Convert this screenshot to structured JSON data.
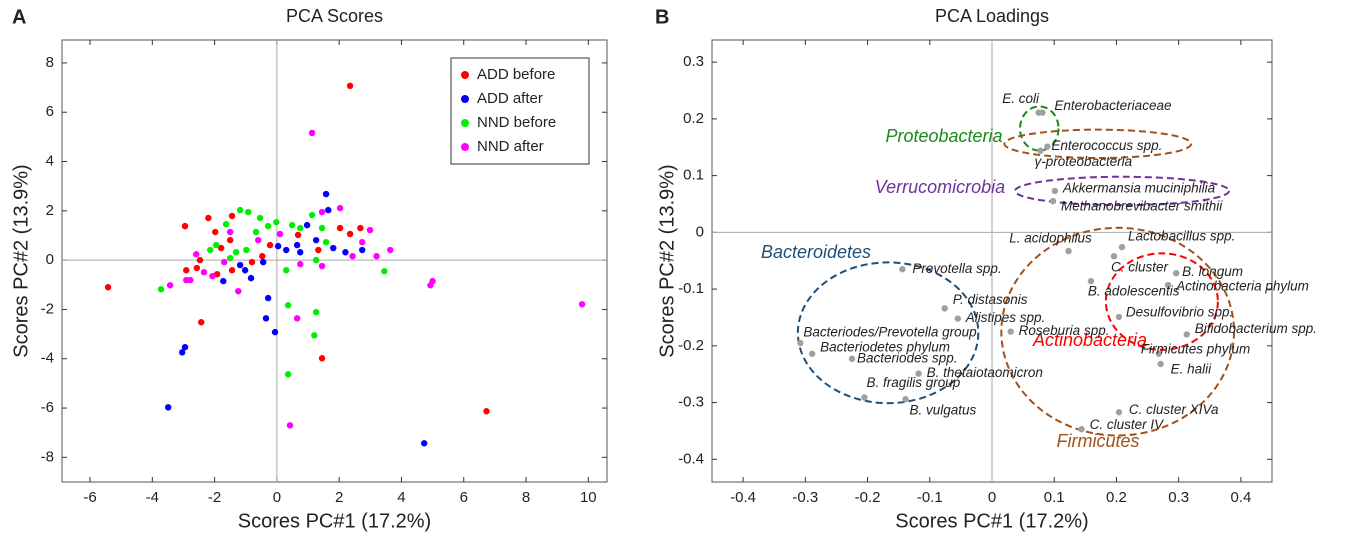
{
  "chart_data": [
    {
      "type": "scatter",
      "panel_label": "A",
      "title": "PCA Scores",
      "x_label": "Scores PC#1 (17.2%)",
      "y_label": "Scores PC#2 (13.9%)",
      "xlim": [
        -6.9,
        10.6
      ],
      "ylim": [
        -9.0,
        8.93
      ],
      "xticks": [
        -6,
        -4,
        -2,
        0,
        2,
        4,
        6,
        8,
        10
      ],
      "yticks": [
        -8,
        -6,
        -4,
        -2,
        0,
        2,
        4,
        6,
        8
      ],
      "legend": "upper right",
      "series": [
        {
          "name": "ADD before",
          "color": "#ff0000",
          "x": [
            -5.42,
            2.35,
            -2.95,
            -2.2,
            -2.47,
            -1.98,
            -1.79,
            -1.5,
            -2.43,
            1.45,
            6.73,
            2.03,
            2.68,
            2.35,
            0.68,
            1.33,
            -1.44,
            -0.8,
            -2.91,
            -1.92,
            -2.57,
            -1.44,
            -0.22,
            -0.47
          ],
          "values": [
            -1.1,
            7.07,
            1.38,
            1.71,
            0,
            1.14,
            0.49,
            0.81,
            -2.52,
            -3.98,
            -6.13,
            1.3,
            1.3,
            1.06,
            1.02,
            0.41,
            -0.41,
            -0.08,
            -0.41,
            -0.57,
            -0.32,
            1.79,
            0.61,
            0.16
          ]
        },
        {
          "name": "ADD after",
          "color": "#0000ff",
          "x": [
            -3.49,
            -3.04,
            -2.95,
            4.73,
            1.58,
            1.65,
            0.97,
            0.65,
            -0.06,
            -0.28,
            -0.35,
            1.81,
            2.2,
            2.74,
            0.75,
            0.04,
            -0.44,
            -0.83,
            -1.18,
            -1.02,
            -1.72,
            0.3,
            1.26
          ],
          "values": [
            -5.97,
            -3.74,
            -3.53,
            -7.43,
            2.68,
            2.03,
            1.42,
            0.61,
            -2.92,
            -1.54,
            -2.36,
            0.49,
            0.32,
            0.41,
            0.32,
            0.57,
            -0.08,
            -0.73,
            -0.2,
            -0.41,
            -0.85,
            0.41,
            0.81
          ]
        },
        {
          "name": "NND before",
          "color": "#00ee00",
          "x": [
            -3.72,
            -1.18,
            -0.92,
            -0.54,
            0.3,
            1.13,
            1.26,
            1.2,
            0.36,
            0.36,
            3.45,
            -0.02,
            0.49,
            -1.63,
            -2.14,
            -1.95,
            -1.31,
            -0.67,
            -0.28,
            0.75,
            1.45,
            1.58,
            1.26,
            -0.98,
            -1.5
          ],
          "values": [
            -1.18,
            2.03,
            1.95,
            1.71,
            -0.41,
            1.83,
            -2.11,
            -3.05,
            -4.63,
            -1.83,
            -0.45,
            1.54,
            1.42,
            1.46,
            0.41,
            0.61,
            0.32,
            1.14,
            1.38,
            1.3,
            1.3,
            0.73,
            0,
            0.41,
            0.08
          ]
        },
        {
          "name": "NND after",
          "color": "#ff00ff",
          "x": [
            9.8,
            5.0,
            4.93,
            1.13,
            0.65,
            0.42,
            -3.43,
            -2.91,
            -2.78,
            -1.24,
            -2.34,
            -2.59,
            2.03,
            2.99,
            2.74,
            3.64,
            3.2,
            1.45,
            0.75,
            0.1,
            -0.6,
            -1.5,
            -2.07,
            -1.69,
            1.45,
            2.43
          ],
          "values": [
            -1.79,
            -0.85,
            -1.02,
            5.16,
            -2.36,
            -6.7,
            -1.02,
            -0.81,
            -0.81,
            -1.26,
            -0.49,
            0.24,
            2.11,
            1.22,
            0.73,
            0.41,
            0.16,
            1.95,
            -0.16,
            1.06,
            0.81,
            1.14,
            -0.65,
            -0.08,
            -0.24,
            0.16
          ]
        }
      ]
    },
    {
      "type": "labeled-scatter",
      "panel_label": "B",
      "title": "PCA Loadings",
      "x_label": "Scores PC#1 (17.2%)",
      "y_label": "Scores PC#2 (13.9%)",
      "xlim": [
        -0.45,
        0.45
      ],
      "ylim": [
        -0.44,
        0.339
      ],
      "xticks": [
        -0.4,
        -0.3,
        -0.2,
        -0.1,
        0,
        0.1,
        0.2,
        0.3,
        0.4
      ],
      "yticks": [
        -0.4,
        -0.3,
        -0.2,
        -0.1,
        0,
        0.1,
        0.2,
        0.3
      ],
      "color": "#a0a0a0",
      "point_labels": [
        "E. coli",
        "Enterobacteriaceae",
        "Enterococcus spp.",
        "γ-proteobacteria",
        "Akkermansia muciniphilia",
        "Methanobrevibacter smithii",
        "L. acidophilus",
        "Lactobacillus spp.",
        "C. cluster",
        "B. longum",
        "Actinobacteria phylum",
        "B. adolescentis",
        "Desulfovibrio spp.",
        "Bifidobacterium spp.",
        "Firmicutes phylum",
        "E. halii",
        "C. cluster XIVa",
        "C. cluster IV",
        "Prevotella spp.",
        "P. distasonis",
        "Alistipes spp.",
        "Roseburia spp.",
        "Bacteriodes/Prevotella group",
        "Bacteriodetes phylum",
        "Bacteriodes spp.",
        "B. thetaiotaomicron",
        "B. fragilis group",
        "B. vulgatus"
      ],
      "x": [
        0.075,
        0.081,
        0.089,
        0.078,
        0.101,
        0.098,
        0.123,
        0.209,
        0.196,
        0.296,
        0.283,
        0.159,
        0.204,
        0.313,
        0.268,
        0.271,
        0.204,
        0.144,
        -0.144,
        -0.076,
        -0.055,
        0.03,
        -0.308,
        -0.289,
        -0.225,
        -0.118,
        -0.205,
        -0.139
      ],
      "values": [
        0.211,
        0.211,
        0.151,
        0.144,
        0.073,
        0.055,
        -0.033,
        -0.026,
        -0.042,
        -0.072,
        -0.093,
        -0.086,
        -0.149,
        -0.18,
        -0.214,
        -0.232,
        -0.317,
        -0.347,
        -0.065,
        -0.134,
        -0.152,
        -0.175,
        -0.195,
        -0.214,
        -0.223,
        -0.249,
        -0.291,
        -0.294
      ],
      "groups": [
        {
          "name": "Proteobacteria",
          "color": "#1a8a1a",
          "center": [
            0.076,
            0.183
          ],
          "radii": [
            0.031,
            0.039
          ]
        },
        {
          "color": "#a0521a",
          "center": [
            0.17,
            0.156
          ],
          "radii": [
            0.15,
            0.025
          ]
        },
        {
          "name": "Verrucomicrobia",
          "color": "#7030a0",
          "center": [
            0.209,
            0.073
          ],
          "radii": [
            0.172,
            0.025
          ]
        },
        {
          "name": "Bacteroidetes",
          "color": "#1f4e79",
          "center": [
            -0.167,
            -0.177
          ],
          "radii": [
            0.145,
            0.124
          ]
        },
        {
          "name": "Actinobacteria",
          "color": "#ff0000",
          "center": [
            0.273,
            -0.122
          ],
          "radii": [
            0.09,
            0.085
          ]
        },
        {
          "name": "Firmicutes",
          "color": "#a0521a",
          "center": [
            0.202,
            -0.175
          ],
          "radii": [
            0.187,
            0.183
          ]
        }
      ]
    }
  ]
}
